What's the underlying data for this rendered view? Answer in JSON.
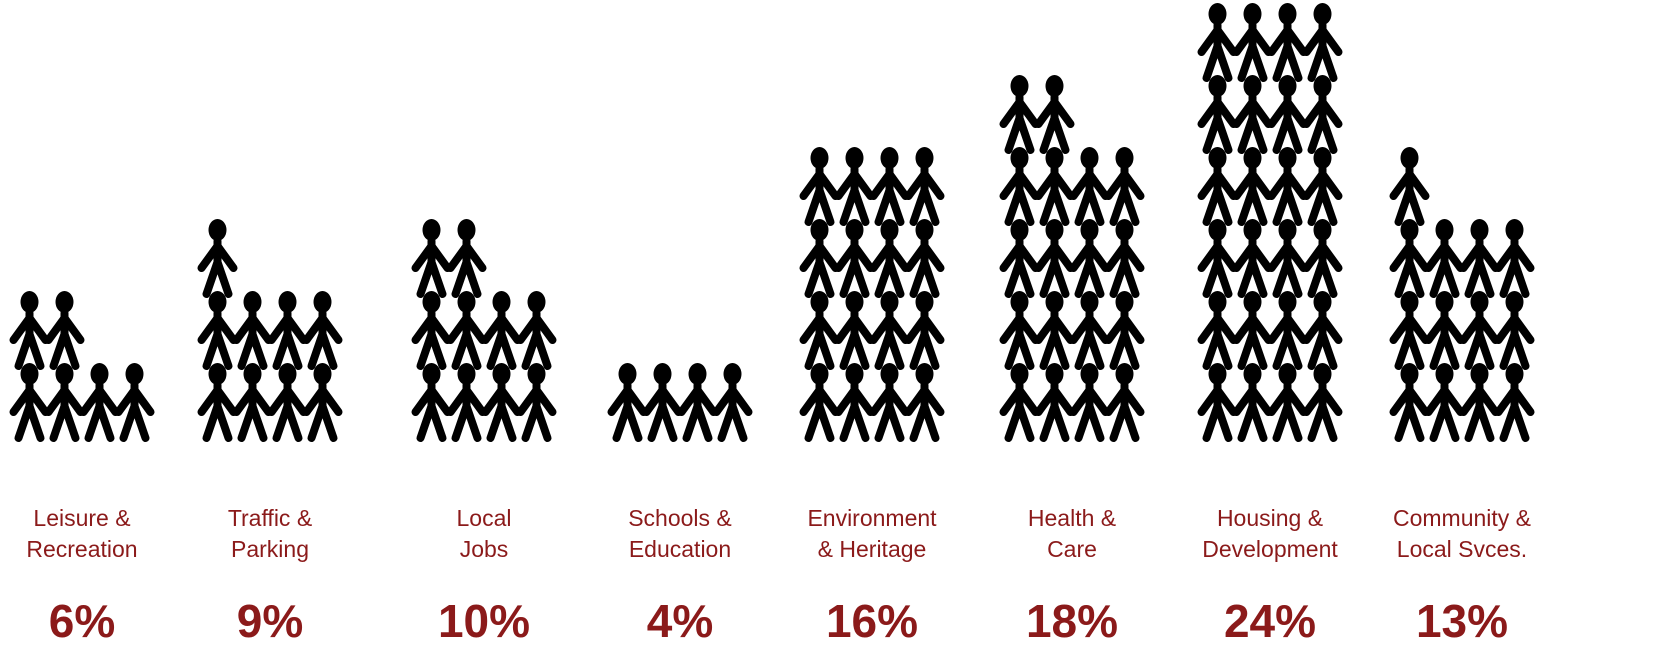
{
  "chart_data": {
    "type": "bar",
    "style": "pictogram",
    "unit": "%",
    "icon": "person-icon",
    "colors": {
      "label": "#8b1a1a",
      "icon": "#000000"
    },
    "categories": [
      [
        "Leisure &",
        "Recreation"
      ],
      [
        "Traffic &",
        "Parking"
      ],
      [
        "Local",
        "Jobs"
      ],
      [
        "Schools &",
        "Education"
      ],
      [
        "Environment",
        "& Heritage"
      ],
      [
        "Health &",
        "Care"
      ],
      [
        "Housing &",
        "Development"
      ],
      [
        "Community &",
        "Local Svces."
      ]
    ],
    "values": [
      6,
      9,
      10,
      4,
      16,
      18,
      24,
      13
    ],
    "value_labels": [
      "6%",
      "9%",
      "10%",
      "4%",
      "16%",
      "18%",
      "24%",
      "13%"
    ]
  }
}
